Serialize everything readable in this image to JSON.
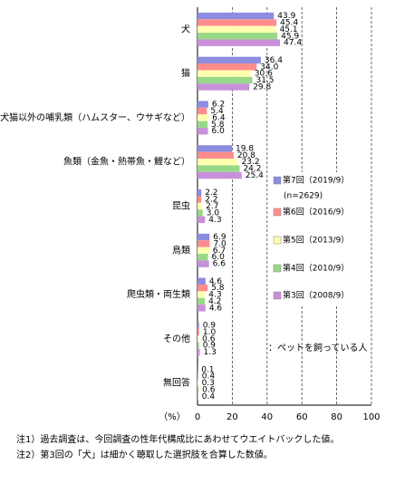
{
  "chart_data": {
    "type": "hbar",
    "categories": [
      "犬",
      "猫",
      "犬猫以外の哺乳類（ハムスター、ウサギなど）",
      "魚類（金魚・熱帯魚・鯉など）",
      "昆虫",
      "鳥類",
      "爬虫類・両生類",
      "その他",
      "無回答"
    ],
    "series": [
      {
        "name": "第7回（2019/9）",
        "color": "#8c8ce0",
        "values": [
          43.9,
          36.4,
          6.2,
          19.8,
          2.2,
          6.9,
          4.6,
          0.9,
          0.1
        ],
        "value_labels": [
          "43.9",
          "36.4",
          "6.2",
          "19.8",
          "2.2",
          "6.9",
          "4.6",
          "0.9",
          "0.1"
        ]
      },
      {
        "name": "第6回（2016/9）",
        "color": "#ff8c8c",
        "values": [
          45.4,
          34.0,
          5.4,
          20.8,
          2.2,
          7.0,
          5.8,
          1.0,
          0.4
        ],
        "value_labels": [
          "45.4",
          "34.0",
          "5.4",
          "20.8",
          "2.2",
          "7.0",
          "5.8",
          "1.0",
          "0.4"
        ]
      },
      {
        "name": "第5回（2013/9）",
        "color": "#ffffb0",
        "values": [
          45.1,
          30.6,
          6.4,
          23.2,
          2.7,
          6.7,
          4.3,
          0.6,
          0.3
        ],
        "value_labels": [
          "45.1",
          "30.6",
          "6.4",
          "23.2",
          "2.7",
          "6.7",
          "4.3",
          "0.6",
          "0.3"
        ]
      },
      {
        "name": "第4回（2010/9）",
        "color": "#98d888",
        "values": [
          45.9,
          31.5,
          5.8,
          24.2,
          3.0,
          6.0,
          4.2,
          0.9,
          0.6
        ],
        "value_labels": [
          "45.9",
          "31.5",
          "5.8",
          "24.2",
          "3.0",
          "6.0",
          "4.2",
          "0.9",
          "0.6"
        ]
      },
      {
        "name": "第3回（2008/9）",
        "color": "#c890d8",
        "values": [
          47.4,
          29.8,
          6.0,
          25.4,
          4.3,
          6.6,
          4.6,
          1.3,
          0.4
        ],
        "value_labels": [
          "47.4",
          "29.8",
          "6.0",
          "25.4",
          "4.3",
          "6.6",
          "4.6",
          "1.3",
          "0.4"
        ]
      }
    ],
    "legend_note": "(n=2629)",
    "annotation": "：ペットを飼っている人",
    "xlabel": "（%）",
    "xlim": [
      0,
      100
    ],
    "xticks": [
      0,
      20,
      40,
      60,
      80,
      100
    ],
    "grid": true,
    "notes": [
      "注1）過去調査は、今回調査の性年代構成比にあわせてウエイトバックした値。",
      "注2）第3回の「犬」は細かく聴取した選択肢を合算した数値。"
    ]
  }
}
